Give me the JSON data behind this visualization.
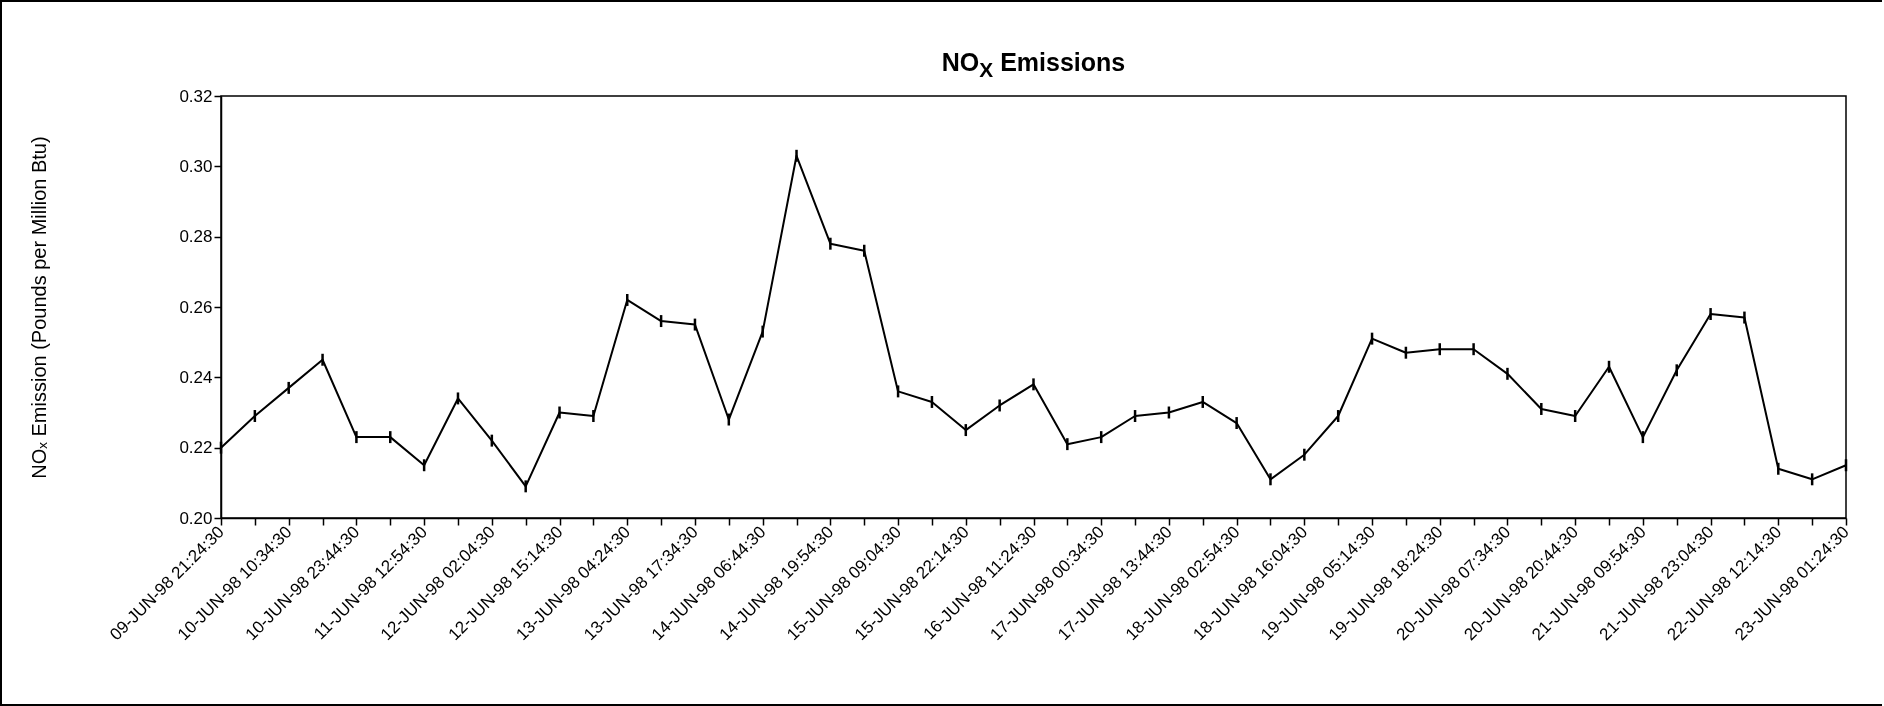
{
  "chart_data": {
    "type": "line",
    "title": "NO$_{X}$ Emissions",
    "ylabel": "NOₓ Emission  (Pounds per Million Btu)",
    "categories": [
      "09-JUN-98 21:24:30",
      null,
      "10-JUN-98 10:34:30",
      null,
      "10-JUN-98 23:44:30",
      null,
      "11-JUN-98 12:54:30",
      null,
      "12-JUN-98 02:04:30",
      null,
      "12-JUN-98 15:14:30",
      null,
      "13-JUN-98 04:24:30",
      null,
      "13-JUN-98 17:34:30",
      null,
      "14-JUN-98 06:44:30",
      null,
      "14-JUN-98 19:54:30",
      null,
      "15-JUN-98 09:04:30",
      null,
      "15-JUN-98 22:14:30",
      null,
      "16-JUN-98 11:24:30",
      null,
      "17-JUN-98 00:34:30",
      null,
      "17-JUN-98 13:44:30",
      null,
      "18-JUN-98 02:54:30",
      null,
      "18-JUN-98 16:04:30",
      null,
      "19-JUN-98 05:14:30",
      null,
      "19-JUN-98 18:24:30",
      null,
      "20-JUN-98 07:34:30",
      null,
      "20-JUN-98 20:44:30",
      null,
      "21-JUN-98 09:54:30",
      null,
      "21-JUN-98 23:04:30",
      null,
      "22-JUN-98 12:14:30",
      null,
      "23-JUN-98 01:24:30"
    ],
    "series": [
      {
        "color": "#000000",
        "values": [
          0.22,
          0.229,
          0.237,
          0.245,
          0.223,
          0.223,
          0.215,
          0.234,
          0.222,
          0.209,
          0.23,
          0.229,
          0.262,
          0.256,
          0.255,
          0.228,
          0.253,
          0.303,
          0.278,
          0.276,
          0.236,
          0.233,
          0.225,
          0.232,
          0.238,
          0.221,
          0.223,
          0.229,
          0.23,
          0.233,
          0.227,
          0.211,
          0.218,
          0.229,
          0.251,
          0.247,
          0.248,
          0.248,
          0.241,
          0.231,
          0.229,
          0.243,
          0.223,
          0.242,
          0.258,
          0.257,
          0.214,
          0.211,
          0.215
        ],
        "errors": [
          0.0017,
          0.0017,
          0.0017,
          0.0017,
          0.0017,
          0.0017,
          0.0017,
          0.0017,
          0.0017,
          0.0017,
          0.0017,
          0.0017,
          0.0017,
          0.0017,
          0.0017,
          0.0017,
          0.0017,
          0.0017,
          0.0017,
          0.0017,
          0.0017,
          0.0017,
          0.0017,
          0.0017,
          0.0017,
          0.0017,
          0.0017,
          0.0017,
          0.0017,
          0.0017,
          0.0017,
          0.0017,
          0.0017,
          0.0017,
          0.0017,
          0.0017,
          0.0017,
          0.0017,
          0.0017,
          0.0017,
          0.0017,
          0.0017,
          0.0017,
          0.0017,
          0.0017,
          0.0017,
          0.0017,
          0.0017,
          0.0017
        ]
      }
    ],
    "ylim": [
      0.2,
      0.32
    ],
    "yticks": [
      {
        "value": 0.2,
        "label": "0.20"
      },
      0.22,
      0.24,
      0.26,
      0.28,
      {
        "value": 0.3,
        "label": "0.30"
      },
      0.32
    ]
  }
}
